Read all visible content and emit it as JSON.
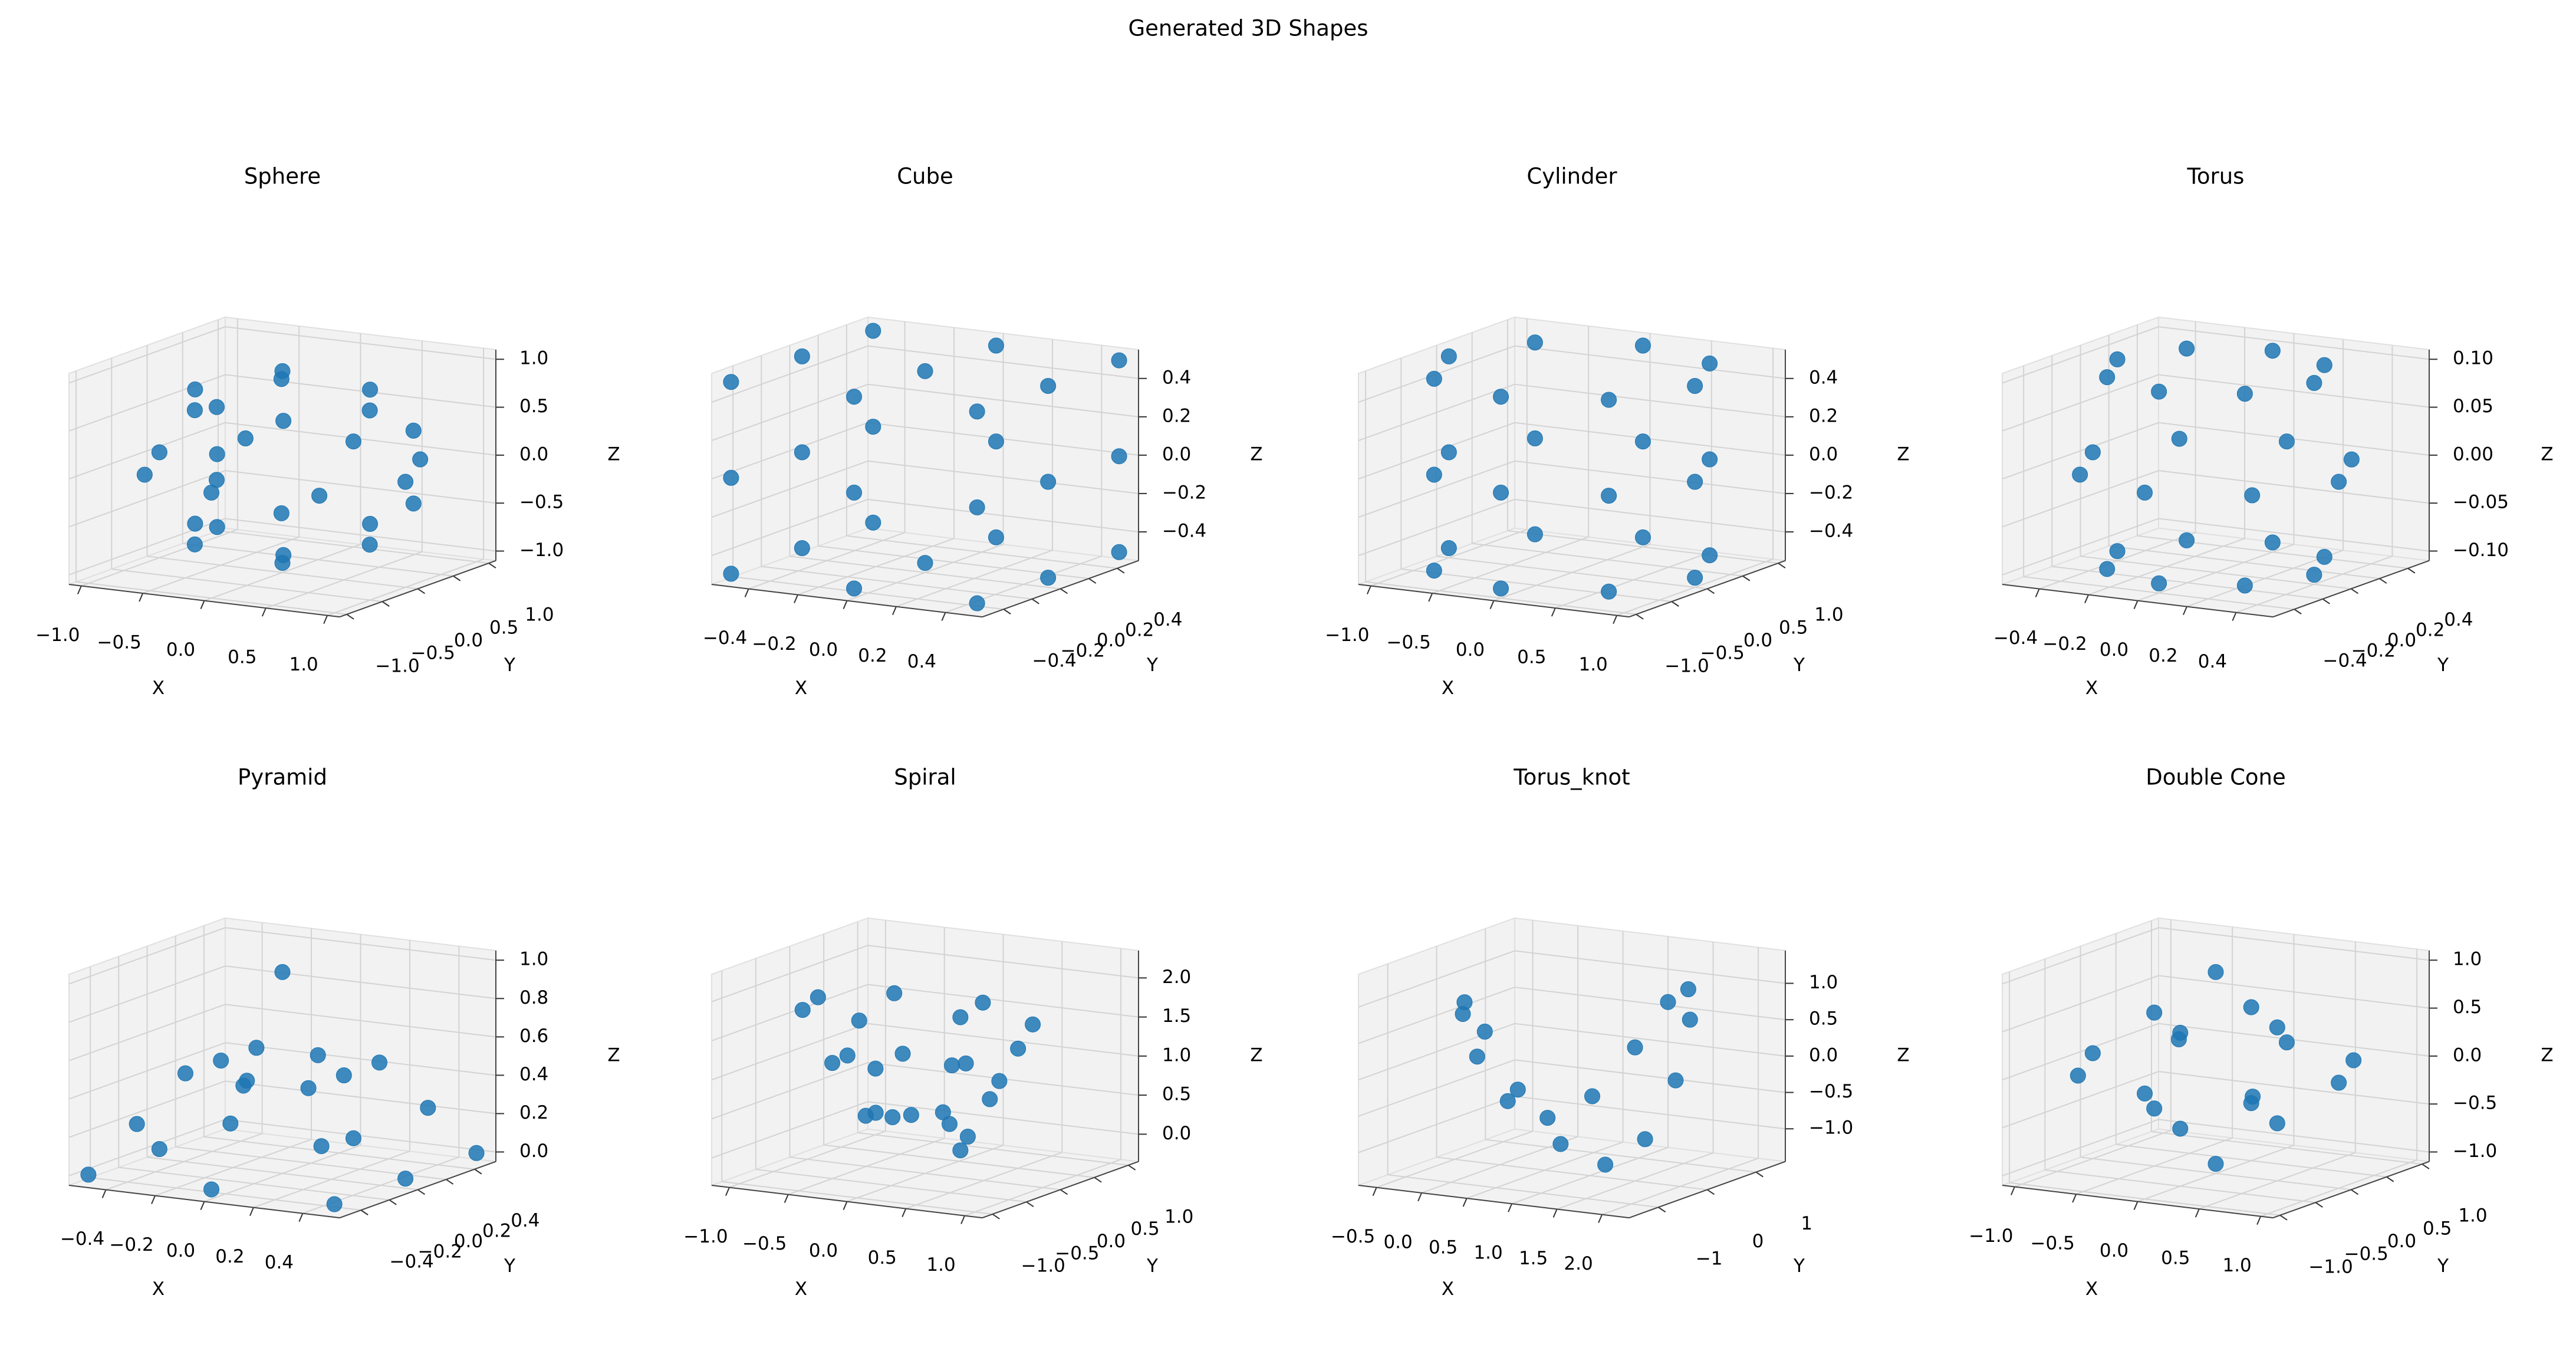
{
  "title": "Generated 3D Shapes",
  "chart_data": [
    {
      "type": "scatter3d",
      "title": "Sphere",
      "xlabel": "X",
      "ylabel": "Y",
      "zlabel": "Z",
      "color": "#1f77b4",
      "xlim": [
        -1.1,
        1.1
      ],
      "ylim": [
        -1.1,
        1.1
      ],
      "zlim": [
        -1.1,
        1.1
      ],
      "xticks": [
        {
          "value": -1,
          "label": "−1.0"
        },
        {
          "value": -0.5,
          "label": "−0.5"
        },
        {
          "value": 0,
          "label": "0.0"
        },
        0.5,
        {
          "value": 1,
          "label": "1.0"
        }
      ],
      "yticks": [
        {
          "value": -1,
          "label": "−1.0"
        },
        {
          "value": -0.5,
          "label": "−0.5"
        },
        {
          "value": 0,
          "label": "0.0"
        },
        0.5,
        {
          "value": 1,
          "label": "1.0"
        }
      ],
      "zticks": [
        {
          "value": -1,
          "label": "−1.0"
        },
        {
          "value": -0.5,
          "label": "−0.5"
        },
        {
          "value": 0,
          "label": "0.0"
        },
        0.5,
        {
          "value": 1,
          "label": "1.0"
        }
      ],
      "x": [
        1,
        0.71,
        0,
        -0.71,
        -1,
        -0.71,
        0,
        0.71,
        0.71,
        0.36,
        -0.36,
        -0.71,
        -0.36,
        0.36,
        0.71,
        0.36,
        -0.36,
        -0.71,
        -0.36,
        0.36,
        0,
        0,
        0.8,
        -0.8,
        0,
        0.8,
        -0.8,
        0
      ],
      "y": [
        0,
        0.71,
        1,
        0.71,
        0,
        -0.71,
        -1,
        -0.71,
        0,
        0.61,
        0.61,
        0,
        -0.61,
        -0.61,
        0,
        0.61,
        0.61,
        0,
        -0.61,
        -0.61,
        0,
        0,
        0.46,
        0.46,
        -0.92,
        0.46,
        0.46,
        -0.92
      ],
      "z": [
        0,
        0,
        0,
        0,
        0,
        0,
        0,
        0,
        0.7,
        0.7,
        0.7,
        0.7,
        0.7,
        0.7,
        -0.7,
        -0.7,
        -0.7,
        -0.7,
        -0.7,
        -0.7,
        1,
        -1,
        0.38,
        0.38,
        0.38,
        -0.38,
        -0.38,
        -0.38
      ]
    },
    {
      "type": "scatter3d",
      "title": "Cube",
      "xlabel": "X",
      "ylabel": "Y",
      "zlabel": "Z",
      "color": "#1f77b4",
      "xlim": [
        -0.55,
        0.55
      ],
      "ylim": [
        -0.55,
        0.55
      ],
      "zlim": [
        -0.55,
        0.55
      ],
      "xticks": [
        {
          "value": -0.4,
          "label": "−0.4"
        },
        {
          "value": -0.2,
          "label": "−0.2"
        },
        {
          "value": 0,
          "label": "0.0"
        },
        0.2,
        0.4
      ],
      "yticks": [
        {
          "value": -0.4,
          "label": "−0.4"
        },
        {
          "value": -0.2,
          "label": "−0.2"
        },
        {
          "value": 0,
          "label": "0.0"
        },
        0.2,
        0.4
      ],
      "zticks": [
        {
          "value": -0.4,
          "label": "−0.4"
        },
        {
          "value": -0.2,
          "label": "−0.2"
        },
        {
          "value": 0,
          "label": "0.0"
        },
        0.2,
        0.4
      ],
      "x": [
        -0.5,
        0.5,
        -0.5,
        0.5,
        -0.5,
        0.5,
        -0.5,
        0.5,
        0.5,
        -0.5,
        0,
        0,
        0,
        0,
        0,
        0,
        0,
        0,
        0.5,
        0.5,
        -0.5,
        -0.5,
        0.5,
        0.5,
        -0.5,
        -0.5
      ],
      "y": [
        -0.5,
        -0.5,
        0.5,
        0.5,
        -0.5,
        -0.5,
        0.5,
        0.5,
        0,
        0,
        0.5,
        -0.5,
        0,
        0,
        0.5,
        0.5,
        -0.5,
        -0.5,
        0,
        0,
        0,
        0,
        0.5,
        -0.5,
        0.5,
        -0.5
      ],
      "z": [
        -0.5,
        -0.5,
        -0.5,
        -0.5,
        0.5,
        0.5,
        0.5,
        0.5,
        0,
        0,
        0,
        0,
        0.5,
        -0.5,
        0.5,
        -0.5,
        0.5,
        -0.5,
        0.5,
        -0.5,
        0.5,
        -0.5,
        0,
        0,
        0,
        0
      ]
    },
    {
      "type": "scatter3d",
      "title": "Cylinder",
      "xlabel": "X",
      "ylabel": "Y",
      "zlabel": "Z",
      "color": "#1f77b4",
      "xlim": [
        -1.1,
        1.1
      ],
      "ylim": [
        -1.1,
        1.1
      ],
      "zlim": [
        -0.55,
        0.55
      ],
      "xticks": [
        {
          "value": -1,
          "label": "−1.0"
        },
        {
          "value": -0.5,
          "label": "−0.5"
        },
        {
          "value": 0,
          "label": "0.0"
        },
        0.5,
        {
          "value": 1,
          "label": "1.0"
        }
      ],
      "yticks": [
        {
          "value": -1,
          "label": "−1.0"
        },
        {
          "value": -0.5,
          "label": "−0.5"
        },
        {
          "value": 0,
          "label": "0.0"
        },
        0.5,
        {
          "value": 1,
          "label": "1.0"
        }
      ],
      "zticks": [
        {
          "value": -0.4,
          "label": "−0.4"
        },
        {
          "value": -0.2,
          "label": "−0.2"
        },
        {
          "value": 0,
          "label": "0.0"
        },
        0.2,
        0.4
      ],
      "x": [
        1,
        0.71,
        0,
        -0.71,
        -1,
        -0.71,
        0,
        0.71,
        1,
        0.71,
        0,
        -0.71,
        -1,
        -0.71,
        0,
        0.71,
        1,
        0.71,
        0,
        -0.71,
        -1,
        -0.71,
        0,
        0.71
      ],
      "y": [
        0,
        0.71,
        1,
        0.71,
        0,
        -0.71,
        -1,
        -0.71,
        0,
        0.71,
        1,
        0.71,
        0,
        -0.71,
        -1,
        -0.71,
        0,
        0.71,
        1,
        0.71,
        0,
        -0.71,
        -1,
        -0.71
      ],
      "z": [
        0.5,
        0.5,
        0.5,
        0.5,
        0.5,
        0.5,
        0.5,
        0.5,
        0,
        0,
        0,
        0,
        0,
        0,
        0,
        0,
        -0.5,
        -0.5,
        -0.5,
        -0.5,
        -0.5,
        -0.5,
        -0.5,
        -0.5
      ]
    },
    {
      "type": "scatter3d",
      "title": "Torus",
      "xlabel": "X",
      "ylabel": "Y",
      "zlabel": "Z",
      "color": "#1f77b4",
      "xlim": [
        -0.55,
        0.55
      ],
      "ylim": [
        -0.55,
        0.55
      ],
      "zlim": [
        -0.11,
        0.11
      ],
      "xticks": [
        {
          "value": -0.4,
          "label": "−0.4"
        },
        {
          "value": -0.2,
          "label": "−0.2"
        },
        {
          "value": 0,
          "label": "0.0"
        },
        0.2,
        0.4
      ],
      "yticks": [
        {
          "value": -0.4,
          "label": "−0.4"
        },
        {
          "value": -0.2,
          "label": "−0.2"
        },
        {
          "value": 0,
          "label": "0.0"
        },
        0.2,
        0.4
      ],
      "zticks": [
        {
          "value": -0.1,
          "label": "−0.10"
        },
        {
          "value": -0.05,
          "label": "−0.05"
        },
        {
          "value": 0,
          "label": "0.00"
        },
        0.05,
        {
          "value": 0.1,
          "label": "0.10"
        }
      ],
      "x": [
        0.5,
        0.35,
        0,
        -0.35,
        -0.5,
        -0.35,
        0,
        0.35,
        0.4,
        0.28,
        0,
        -0.28,
        -0.4,
        -0.28,
        0,
        0.28,
        0.4,
        0.28,
        0,
        -0.28,
        -0.4,
        -0.28,
        0,
        0.28
      ],
      "y": [
        0,
        0.35,
        0.5,
        0.35,
        0,
        -0.35,
        -0.5,
        -0.35,
        0,
        0.28,
        0.4,
        0.28,
        0,
        -0.28,
        -0.4,
        -0.28,
        0,
        0.28,
        0.4,
        0.28,
        0,
        -0.28,
        -0.4,
        -0.28
      ],
      "z": [
        0,
        0,
        0,
        0,
        0,
        0,
        0,
        0,
        0.1,
        0.1,
        0.1,
        0.1,
        0.1,
        0.1,
        0.1,
        0.1,
        -0.1,
        -0.1,
        -0.1,
        -0.1,
        -0.1,
        -0.1,
        -0.1,
        -0.1
      ]
    },
    {
      "type": "scatter3d",
      "title": "Pyramid",
      "xlabel": "X",
      "ylabel": "Y",
      "zlabel": "Z",
      "color": "#1f77b4",
      "xlim": [
        -0.55,
        0.55
      ],
      "ylim": [
        -0.55,
        0.55
      ],
      "zlim": [
        -0.05,
        1.05
      ],
      "xticks": [
        {
          "value": -0.4,
          "label": "−0.4"
        },
        {
          "value": -0.2,
          "label": "−0.2"
        },
        {
          "value": 0,
          "label": "0.0"
        },
        0.2,
        0.4
      ],
      "yticks": [
        {
          "value": -0.4,
          "label": "−0.4"
        },
        {
          "value": -0.2,
          "label": "−0.2"
        },
        {
          "value": 0,
          "label": "0.0"
        },
        0.2,
        0.4
      ],
      "zticks": [
        {
          "value": 0,
          "label": "0.0"
        },
        0.2,
        0.4,
        0.6,
        0.8,
        {
          "value": 1,
          "label": "1.0"
        }
      ],
      "x": [
        0,
        -0.5,
        0.5,
        -0.5,
        0.5,
        0.5,
        -0.5,
        0,
        0,
        0.25,
        0.25,
        -0.25,
        -0.25,
        0.25,
        -0.25,
        0,
        0,
        0.375,
        0.375,
        -0.375,
        -0.375
      ],
      "y": [
        0,
        -0.5,
        -0.5,
        0.5,
        0.5,
        0,
        0,
        0.5,
        -0.5,
        0.25,
        -0.25,
        0.25,
        -0.25,
        0,
        0,
        0.25,
        -0.25,
        0.375,
        -0.375,
        0.375,
        -0.375
      ],
      "z": [
        1,
        0,
        0,
        0,
        0,
        0,
        0,
        0,
        0,
        0.5,
        0.5,
        0.5,
        0.5,
        0.5,
        0.5,
        0.5,
        0.5,
        0.25,
        0.25,
        0.25,
        0.25
      ]
    },
    {
      "type": "scatter3d",
      "title": "Spiral",
      "xlabel": "X",
      "ylabel": "Y",
      "zlabel": "Z",
      "color": "#1f77b4",
      "xlim": [
        -1.15,
        1.15
      ],
      "ylim": [
        -1.15,
        1.15
      ],
      "zlim": [
        -0.35,
        2.35
      ],
      "xticks": [
        {
          "value": -1,
          "label": "−1.0"
        },
        {
          "value": -0.5,
          "label": "−0.5"
        },
        {
          "value": 0,
          "label": "0.0"
        },
        0.5,
        {
          "value": 1,
          "label": "1.0"
        }
      ],
      "yticks": [
        {
          "value": -1,
          "label": "−1.0"
        },
        {
          "value": -0.5,
          "label": "−0.5"
        },
        {
          "value": 0,
          "label": "0.0"
        },
        0.5,
        {
          "value": 1,
          "label": "1.0"
        }
      ],
      "zticks": [
        {
          "value": 0,
          "label": "0.0"
        },
        0.5,
        {
          "value": 1,
          "label": "1.0"
        },
        1.5,
        {
          "value": 2,
          "label": "2.0"
        }
      ],
      "x": [
        0.3,
        0.23,
        0,
        -0.28,
        -0.42,
        -0.32,
        0,
        0.36,
        0.55,
        0.4,
        0,
        -0.45,
        -0.66,
        -0.5,
        0,
        0.54,
        0.79,
        0.58,
        0,
        -0.62,
        -0.91,
        -0.66,
        0,
        0.71
      ],
      "y": [
        0,
        0.23,
        0.36,
        0.28,
        0,
        -0.32,
        -0.48,
        -0.36,
        0,
        0.4,
        0.6,
        0.45,
        0,
        -0.5,
        -0.73,
        -0.54,
        0,
        0.58,
        0.85,
        0.62,
        0,
        -0.66,
        -0.97,
        -0.71
      ],
      "z": [
        0,
        0.09,
        0.17,
        0.26,
        0.35,
        0.43,
        0.52,
        0.61,
        0.7,
        0.78,
        0.87,
        0.96,
        1.04,
        1.13,
        1.22,
        1.3,
        1.39,
        1.48,
        1.57,
        1.65,
        1.74,
        1.83,
        1.91,
        2.0
      ]
    },
    {
      "type": "scatter3d",
      "title": "Torus_knot",
      "xlabel": "X",
      "ylabel": "Y",
      "zlabel": "Z",
      "color": "#1f77b4",
      "xlim": [
        -0.7,
        2.3
      ],
      "ylim": [
        -1.6,
        1.6
      ],
      "zlim": [
        -1.45,
        1.45
      ],
      "xticks": [
        {
          "value": -0.5,
          "label": "−0.5"
        },
        {
          "value": 0,
          "label": "0.0"
        },
        0.5,
        {
          "value": 1,
          "label": "1.0"
        },
        1.5,
        {
          "value": 2,
          "label": "2.0"
        }
      ],
      "yticks": [
        {
          "value": -1,
          "label": "−1"
        },
        0,
        1
      ],
      "zticks": [
        {
          "value": -1,
          "label": "−1.0"
        },
        {
          "value": -0.5,
          "label": "−0.5"
        },
        {
          "value": 0,
          "label": "0.0"
        },
        0.5,
        {
          "value": 1,
          "label": "1.0"
        }
      ],
      "x": [
        1.95,
        1.86,
        1.63,
        1.27,
        0.85,
        0.43,
        0.07,
        -0.16,
        -0.25,
        -0.16,
        0.07,
        0.43,
        0.85,
        1.27,
        1.63,
        1.86
      ],
      "y": [
        0,
        0.46,
        0.85,
        1.1,
        1.2,
        1.1,
        0.85,
        0.46,
        0,
        -0.46,
        -0.85,
        -1.1,
        -1.2,
        -1.1,
        -0.85,
        -0.46
      ],
      "z": [
        0,
        0.71,
        1,
        0.71,
        0,
        -0.71,
        -1,
        -0.71,
        0,
        0.71,
        1,
        0.71,
        0,
        -0.71,
        -1,
        -0.71
      ]
    },
    {
      "type": "scatter3d",
      "title": "Double Cone",
      "xlabel": "X",
      "ylabel": "Y",
      "zlabel": "Z",
      "color": "#1f77b4",
      "xlim": [
        -1.1,
        1.1
      ],
      "ylim": [
        -1.1,
        1.1
      ],
      "zlim": [
        -1.1,
        1.1
      ],
      "xticks": [
        {
          "value": -1,
          "label": "−1.0"
        },
        {
          "value": -0.5,
          "label": "−0.5"
        },
        {
          "value": 0,
          "label": "0.0"
        },
        0.5,
        {
          "value": 1,
          "label": "1.0"
        }
      ],
      "yticks": [
        {
          "value": -1,
          "label": "−1.0"
        },
        {
          "value": -0.5,
          "label": "−0.5"
        },
        {
          "value": 0,
          "label": "0.0"
        },
        0.5,
        {
          "value": 1,
          "label": "1.0"
        }
      ],
      "zticks": [
        {
          "value": -1,
          "label": "−1.0"
        },
        {
          "value": -0.5,
          "label": "−0.5"
        },
        {
          "value": 0,
          "label": "0.0"
        },
        0.5,
        {
          "value": 1,
          "label": "1.0"
        }
      ],
      "x": [
        0,
        0,
        1,
        0.71,
        0,
        -0.71,
        -1,
        -0.71,
        0,
        0.71,
        0.5,
        0,
        -0.5,
        0,
        0.5,
        0,
        -0.5,
        0
      ],
      "y": [
        0,
        0,
        0,
        0.71,
        1,
        0.71,
        0,
        -0.71,
        -1,
        -0.71,
        0,
        0.5,
        0,
        -0.5,
        0,
        0.5,
        0,
        -0.5
      ],
      "z": [
        1,
        -1,
        0,
        0,
        0,
        0,
        0,
        0,
        0,
        0,
        0.5,
        0.5,
        0.5,
        0.5,
        -0.5,
        -0.5,
        -0.5,
        -0.5
      ]
    }
  ]
}
